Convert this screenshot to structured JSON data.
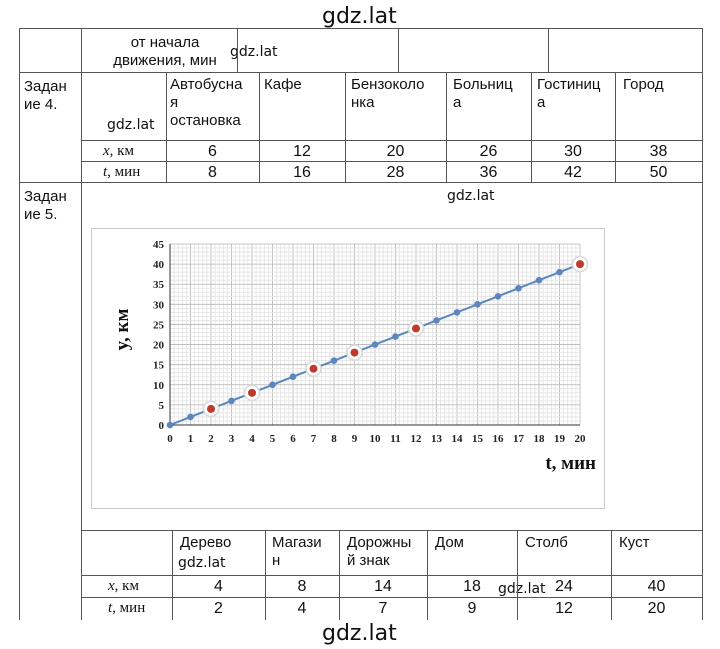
{
  "watermark": "gdz.lat",
  "top_row": {
    "text": "от начала\nдвижения, мин"
  },
  "task4": {
    "label": "Задан\nие 4.",
    "headers": [
      "Автобусна\nя\nостановка",
      "Кафе",
      "Бензоколо\nнка",
      "Больниц\nа",
      "Гостиниц\nа",
      "Город"
    ],
    "x_label": {
      "var": "x",
      "unit": ", км"
    },
    "t_label": {
      "var": "t",
      "unit": ", мин"
    },
    "x_values": [
      "6",
      "12",
      "20",
      "26",
      "30",
      "38"
    ],
    "t_values": [
      "8",
      "16",
      "28",
      "36",
      "42",
      "50"
    ]
  },
  "task5": {
    "label": "Задан\nие 5.",
    "headers": [
      "Дерево",
      "Магази\nн",
      "Дорожны\nй знак",
      "Дом",
      "Столб",
      "Куст"
    ],
    "x_label": {
      "var": "x",
      "unit": ", км"
    },
    "t_label": {
      "var": "t",
      "unit": ", мин"
    },
    "x_values": [
      "4",
      "8",
      "14",
      "18",
      "24",
      "40"
    ],
    "t_values": [
      "2",
      "4",
      "7",
      "9",
      "12",
      "20"
    ]
  },
  "chart_data": {
    "type": "line",
    "xlabel": "t, мин",
    "ylabel": "y, км",
    "xlim": [
      0,
      20
    ],
    "ylim": [
      0,
      45
    ],
    "xticks": [
      "0",
      "1",
      "2",
      "3",
      "4",
      "5",
      "6",
      "7",
      "8",
      "9",
      "10",
      "11",
      "12",
      "13",
      "14",
      "15",
      "16",
      "17",
      "18",
      "19",
      "20"
    ],
    "yticks": [
      "0",
      "5",
      "10",
      "15",
      "20",
      "25",
      "30",
      "35",
      "40",
      "45"
    ],
    "grid": true,
    "line_color": "#5b86be",
    "highlight_color": "#c0392b",
    "series": [
      {
        "x": [
          0,
          1,
          2,
          3,
          4,
          5,
          6,
          7,
          8,
          9,
          10,
          11,
          12,
          13,
          14,
          15,
          16,
          17,
          18,
          19,
          20
        ],
        "y": [
          0,
          2,
          4,
          6,
          8,
          10,
          12,
          14,
          16,
          18,
          20,
          22,
          24,
          26,
          28,
          30,
          32,
          34,
          36,
          38,
          40
        ]
      }
    ],
    "highlighted_points": {
      "x": [
        2,
        4,
        7,
        9,
        12,
        20
      ],
      "y": [
        4,
        8,
        14,
        18,
        24,
        40
      ]
    }
  }
}
